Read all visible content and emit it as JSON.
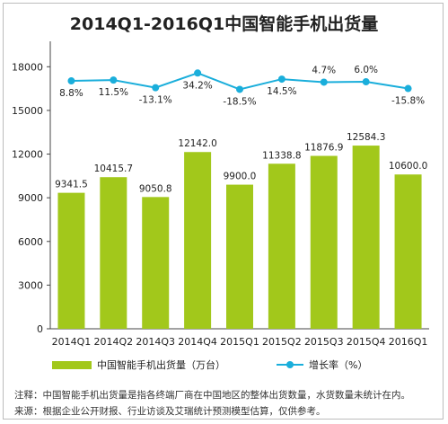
{
  "chart_data": {
    "type": "bar",
    "title": "2014Q1-2016Q1中国智能手机出货量",
    "categories": [
      "2014Q1",
      "2014Q2",
      "2014Q3",
      "2014Q4",
      "2015Q1",
      "2015Q2",
      "2015Q3",
      "2015Q4",
      "2016Q1"
    ],
    "bar_series": {
      "name": "中国智能手机出货量（万台）",
      "values": [
        9341.5,
        10415.7,
        9050.8,
        12142.0,
        9900.0,
        11338.8,
        11876.9,
        12584.3,
        10600.0
      ],
      "value_labels": [
        "9341.5",
        "10415.7",
        "9050.8",
        "12142.0",
        "9900.0",
        "11338.8",
        "11876.9",
        "12584.3",
        "10600.0"
      ],
      "color": "#a2c81b"
    },
    "line_series": {
      "name": "增长率（%）",
      "values": [
        8.8,
        11.5,
        -13.1,
        34.2,
        -18.5,
        14.5,
        4.7,
        6.0,
        -15.8
      ],
      "value_labels": [
        "8.8%",
        "11.5%",
        "-13.1%",
        "34.2%",
        "-18.5%",
        "14.5%",
        "4.7%",
        "6.0%",
        "-15.8%"
      ],
      "color": "#1aaedb"
    },
    "yticks": [
      "0",
      "3000",
      "6000",
      "9000",
      "12000",
      "15000",
      "18000"
    ],
    "ylim": [
      0,
      19500
    ],
    "grid": false,
    "legend_position": "bottom"
  },
  "notes": {
    "line1": "注释：中国智能手机出货量是指各终端厂商在中国地区的整体出货数量，水货数量未统计在内。",
    "line2": "来源：根据企业公开财报、行业访谈及艾瑞统计预测模型估算，仅供参考。"
  }
}
